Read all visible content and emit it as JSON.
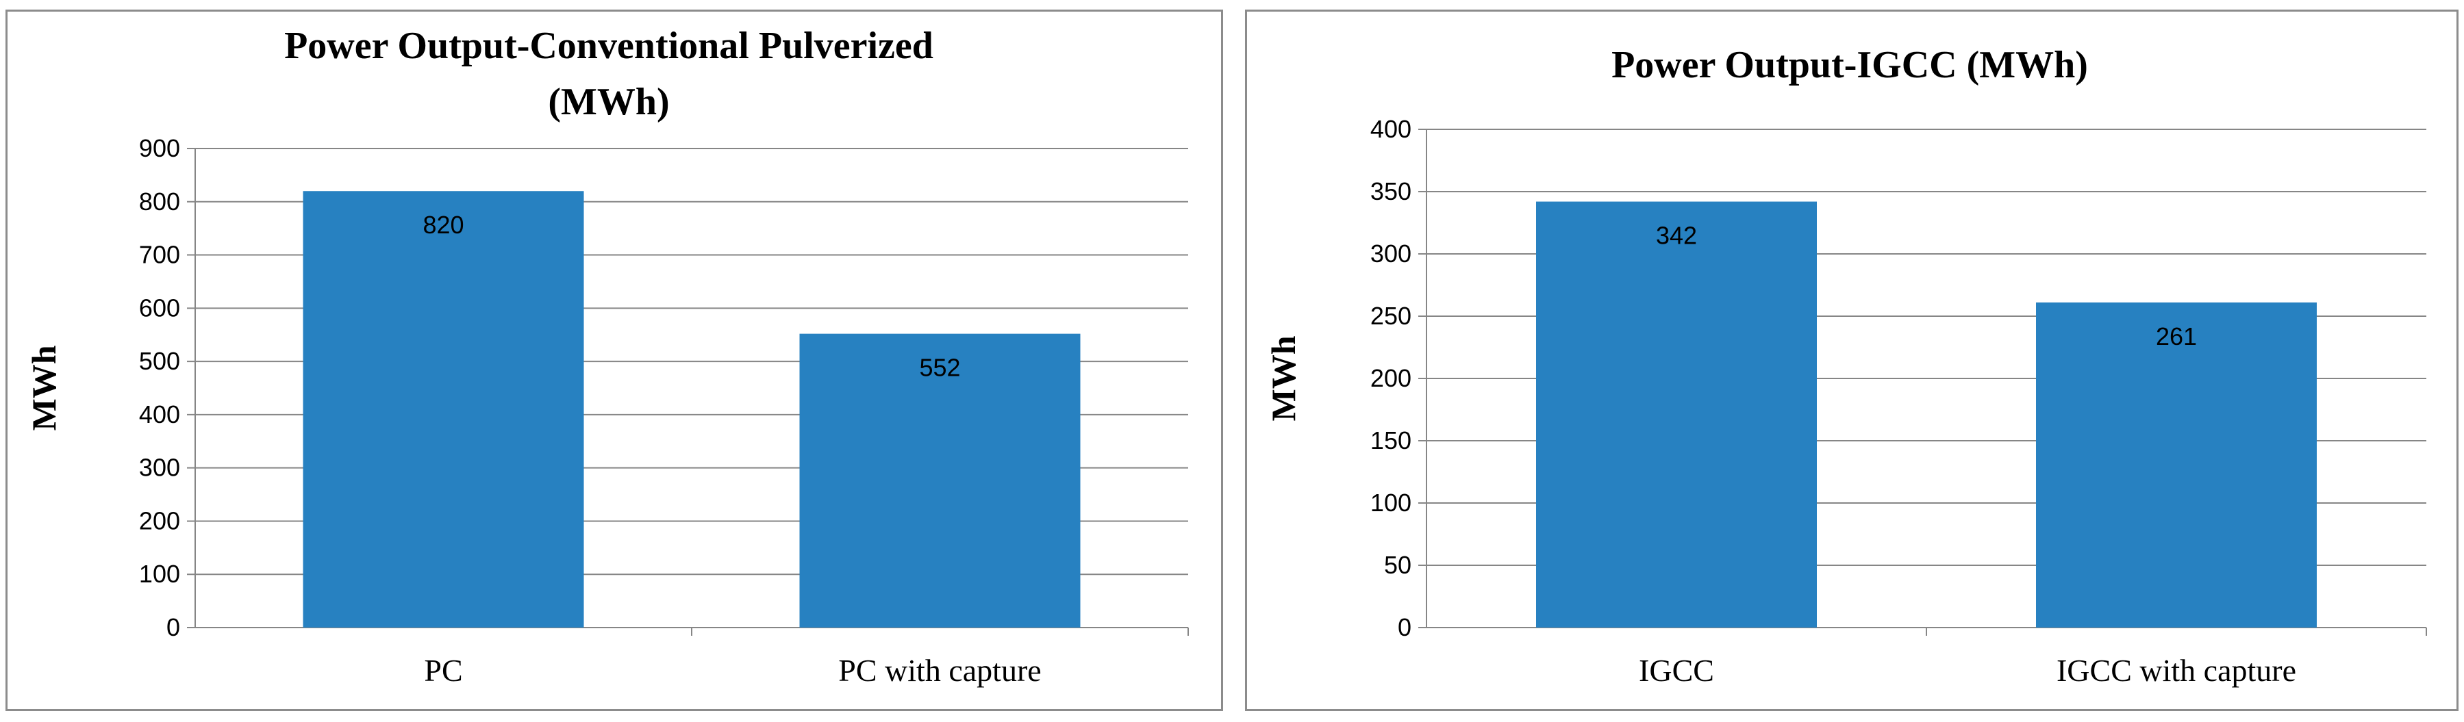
{
  "chart_data": [
    {
      "type": "bar",
      "title_lines": [
        "Power Output-Conventional Pulverized",
        "(MWh)"
      ],
      "ylabel": "MWh",
      "xlabel": "",
      "categories": [
        "PC",
        "PC with capture"
      ],
      "values": [
        820,
        552
      ],
      "data_labels": [
        "820",
        "552"
      ],
      "ylim": [
        0,
        900
      ],
      "yticks": [
        "0",
        "100",
        "200",
        "300",
        "400",
        "500",
        "600",
        "700",
        "800",
        "900"
      ],
      "grid": true,
      "legend": "none",
      "bar_color": "#2781c1"
    },
    {
      "type": "bar",
      "title_lines": [
        "Power Output-IGCC (MWh)"
      ],
      "ylabel": "MWh",
      "xlabel": "",
      "categories": [
        "IGCC",
        "IGCC with capture"
      ],
      "values": [
        342,
        261
      ],
      "data_labels": [
        "342",
        "261"
      ],
      "ylim": [
        0,
        400
      ],
      "yticks": [
        "0",
        "50",
        "100",
        "150",
        "200",
        "250",
        "300",
        "350",
        "400"
      ],
      "grid": true,
      "legend": "none",
      "bar_color": "#2781c1"
    }
  ]
}
